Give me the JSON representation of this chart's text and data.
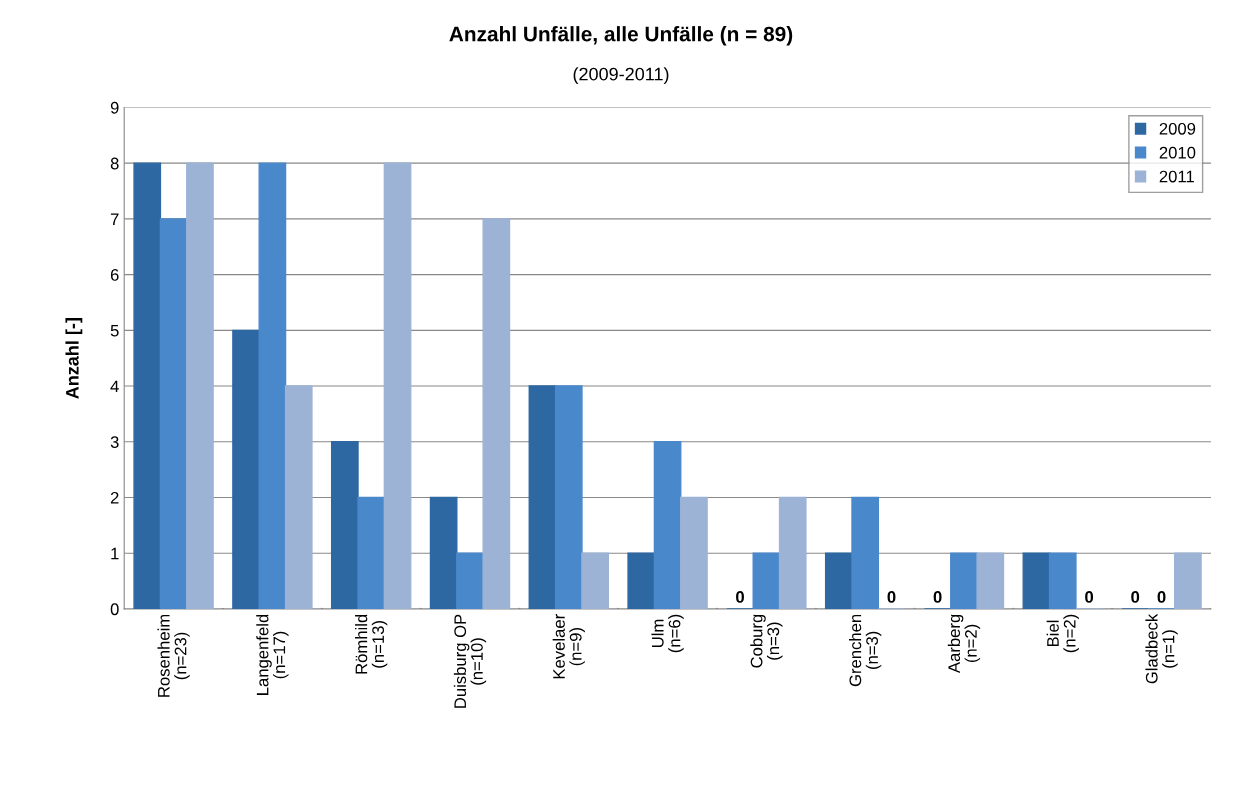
{
  "chart_data": {
    "type": "bar",
    "title": "Anzahl Unfälle, alle Unfälle (n = 89)",
    "subtitle": "(2009-2011)",
    "ylabel": "Anzahl [-]",
    "categories": [
      "Rosenheim\n(n=23)",
      "Langenfeld\n(n=17)",
      "Römhild\n(n=13)",
      "Duisburg OP\n(n=10)",
      "Kevelaer\n(n=9)",
      "Ulm\n(n=6)",
      "Coburg\n(n=3)",
      "Grenchen\n(n=3)",
      "Aarberg\n(n=2)",
      "Biel\n(n=2)",
      "Gladbeck\n(n=1)"
    ],
    "series": [
      {
        "name": "2009",
        "color": "#2e68a3",
        "values": [
          8,
          5,
          3,
          2,
          4,
          1,
          0,
          1,
          0,
          1,
          0
        ],
        "value_labels": [
          null,
          null,
          null,
          null,
          null,
          null,
          "0",
          null,
          "0",
          null,
          "0"
        ]
      },
      {
        "name": "2010",
        "color": "#4a88cc",
        "values": [
          7,
          8,
          2,
          1,
          4,
          3,
          1,
          2,
          1,
          1,
          0
        ],
        "value_labels": [
          null,
          null,
          null,
          null,
          null,
          null,
          null,
          null,
          null,
          null,
          "0"
        ]
      },
      {
        "name": "2011",
        "color": "#9cb3d6",
        "values": [
          8,
          4,
          8,
          7,
          1,
          2,
          2,
          0,
          1,
          0,
          1
        ],
        "value_labels": [
          null,
          null,
          null,
          null,
          null,
          null,
          null,
          "0",
          null,
          "0",
          null
        ]
      }
    ],
    "ylim": [
      0,
      9
    ],
    "yticks": [
      0,
      1,
      2,
      3,
      4,
      5,
      6,
      7,
      8,
      9
    ],
    "grid": "y",
    "legend": "top right"
  }
}
